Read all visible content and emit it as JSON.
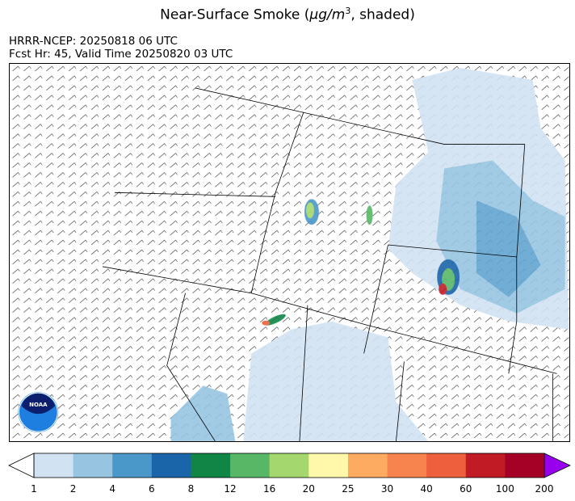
{
  "title": {
    "main": "Near-Surface Smoke (",
    "unit_mu": "μg/m",
    "unit_exp": "3",
    "rest": ", shaded)"
  },
  "header": {
    "model_line": "HRRR-NCEP: 20250818 06 UTC",
    "forecast_line": "Fcst Hr: 45, Valid Time 20250820 03 UTC"
  },
  "map": {
    "overlay": "wind barbs",
    "logo": "NOAA"
  },
  "colorbar": {
    "ticks": [
      "1",
      "2",
      "4",
      "6",
      "8",
      "12",
      "16",
      "20",
      "25",
      "30",
      "40",
      "60",
      "100",
      "200"
    ],
    "colors": [
      "#d1e2f2",
      "#97c4e1",
      "#4a97c9",
      "#1a64a9",
      "#108546",
      "#57b767",
      "#a4d86e",
      "#fff8ab",
      "#fdab61",
      "#f7844e",
      "#ed5f3d",
      "#c11c26",
      "#a50026"
    ],
    "under_color": "#ffffff",
    "over_color": "#9900ee"
  }
}
